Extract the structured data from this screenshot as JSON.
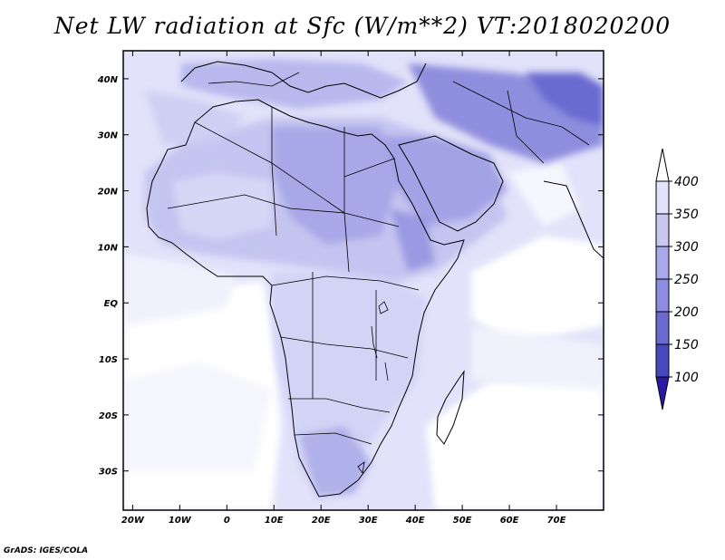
{
  "title": "Net LW radiation at Sfc (W/m**2) VT:2018020200",
  "credit": "GrADS: IGES/COLA",
  "map": {
    "lon_range": [
      -22,
      80
    ],
    "lat_range": [
      -37,
      45
    ],
    "x_ticks": [
      "20W",
      "10W",
      "0",
      "10E",
      "20E",
      "30E",
      "40E",
      "50E",
      "60E",
      "70E"
    ],
    "x_tick_values": [
      -20,
      -10,
      0,
      10,
      20,
      30,
      40,
      50,
      60,
      70
    ],
    "y_ticks": [
      "40N",
      "30N",
      "20N",
      "10N",
      "EQ",
      "10S",
      "20S",
      "30S"
    ],
    "y_tick_values": [
      40,
      30,
      20,
      10,
      0,
      -10,
      -20,
      -30
    ]
  },
  "colorbar": {
    "labels": [
      "400",
      "350",
      "300",
      "250",
      "200",
      "150",
      "100"
    ],
    "colors": [
      "#ffffff",
      "#e2e2fa",
      "#c8c8f2",
      "#a9a9ea",
      "#8c8ce0",
      "#6a6ad0",
      "#4848bd",
      "#2a1aa6"
    ]
  },
  "colors": {
    "ocean_light": "#f4f4fd",
    "ocean_medium": "#e2e2fa",
    "land_light": "#d8d8f6",
    "land_medium": "#b4b4ec",
    "land_dark": "#9090e0",
    "mountain": "#6a6ad0",
    "border": "#000000"
  }
}
